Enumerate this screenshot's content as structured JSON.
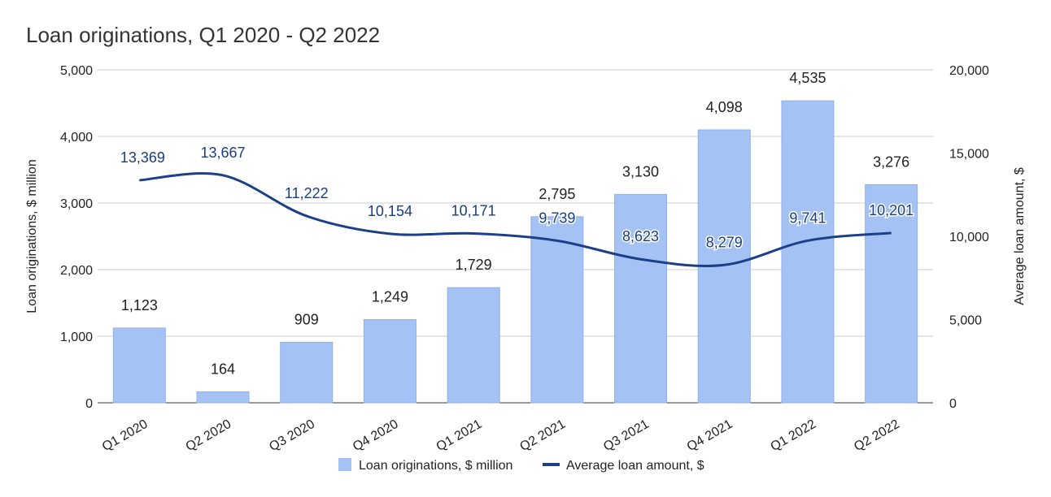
{
  "chart_data": {
    "type": "bar",
    "title": "Loan originations, Q1 2020 - Q2 2022",
    "categories": [
      "Q1 2020",
      "Q2 2020",
      "Q3 2020",
      "Q4 2020",
      "Q1 2021",
      "Q2 2021",
      "Q3 2021",
      "Q4 2021",
      "Q1 2022",
      "Q2 2022"
    ],
    "series": [
      {
        "name": "Loan originations, $ million",
        "type": "bar",
        "axis": "left",
        "values": [
          1123,
          164,
          909,
          1249,
          1729,
          2795,
          3130,
          4098,
          4535,
          3276
        ],
        "labels": [
          "1,123",
          "164",
          "909",
          "1,249",
          "1,729",
          "2,795",
          "3,130",
          "4,098",
          "4,535",
          "3,276"
        ],
        "color": "#a4c2f4"
      },
      {
        "name": "Average loan amount, $",
        "type": "line",
        "axis": "right",
        "values": [
          13369,
          13667,
          11222,
          10154,
          10171,
          9739,
          8623,
          8279,
          9741,
          10201
        ],
        "labels": [
          "13,369",
          "13,667",
          "11,222",
          "10,154",
          "10,171",
          "9,739",
          "8,623",
          "8,279",
          "9,741",
          "10,201"
        ],
        "color": "#1c3f8a"
      }
    ],
    "ylabel": "Loan originations, $ million",
    "y2label": "Average loan amount, $",
    "ylim": [
      0,
      5000
    ],
    "y2lim": [
      0,
      20000
    ],
    "yticks": [
      "0",
      "1,000",
      "2,000",
      "3,000",
      "4,000",
      "5,000"
    ],
    "y2ticks": [
      "0",
      "5,000",
      "10,000",
      "15,000",
      "20,000"
    ],
    "grid": true,
    "legend_position": "bottom"
  }
}
